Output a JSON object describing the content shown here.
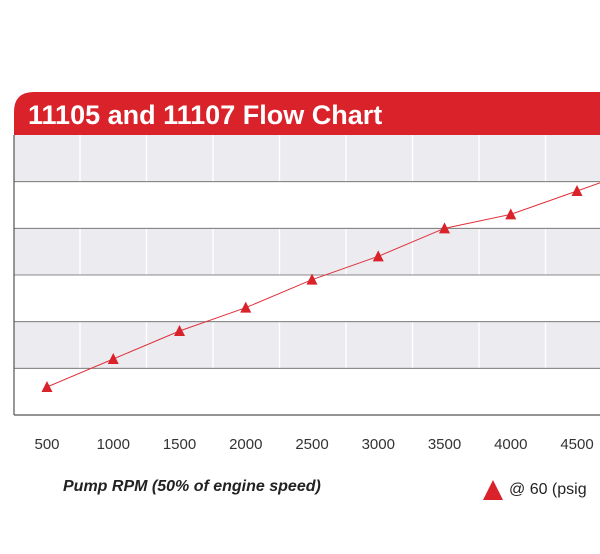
{
  "chart_data": {
    "type": "line",
    "title": "11105 and 11107 Flow Chart",
    "xlabel": "Pump RPM (50% of engine speed)",
    "ylabel": "",
    "x_tick_labels": [
      "500",
      "1000",
      "1500",
      "2000",
      "2500",
      "3000",
      "3500",
      "4000",
      "4500"
    ],
    "x": [
      500,
      1000,
      1500,
      2000,
      2500,
      3000,
      3500,
      4000,
      4500
    ],
    "series": [
      {
        "name": "@ 60 (psig",
        "marker": "triangle",
        "values": [
          0.6,
          1.2,
          1.8,
          2.3,
          2.9,
          3.4,
          4.0,
          4.3,
          4.8
        ]
      }
    ],
    "xlim": [
      500,
      4800
    ],
    "ylim": [
      0,
      6
    ],
    "grid": true,
    "legend_position": "bottom-right"
  },
  "colors": {
    "accent": "#d9222a",
    "band": "#ebebf0",
    "grid": "#666666",
    "line": "#e0303a"
  }
}
